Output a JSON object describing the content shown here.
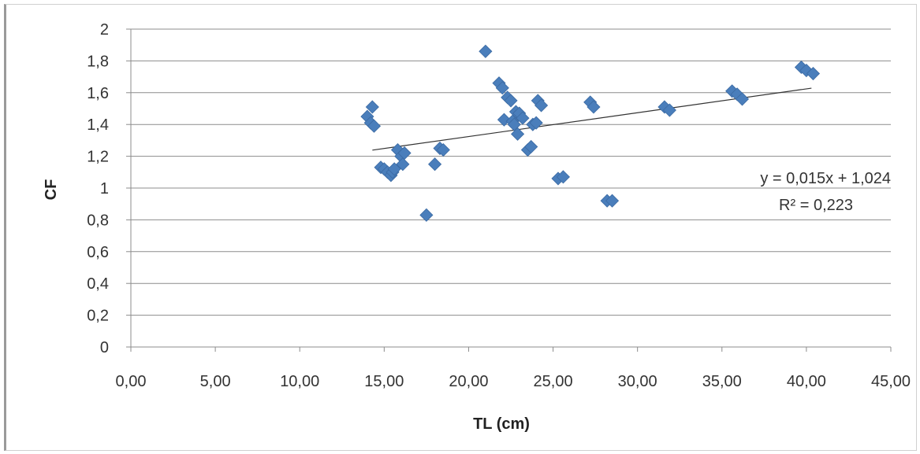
{
  "chart_data": {
    "type": "scatter",
    "xlabel": "TL (cm)",
    "ylabel": "CF",
    "xlim": [
      0,
      45
    ],
    "ylim": [
      0,
      2
    ],
    "x_ticks": [
      "0,00",
      "5,00",
      "10,00",
      "15,00",
      "20,00",
      "25,00",
      "30,00",
      "35,00",
      "40,00",
      "45,00"
    ],
    "y_ticks": [
      "0",
      "0,2",
      "0,4",
      "0,6",
      "0,8",
      "1",
      "1,2",
      "1,4",
      "1,6",
      "1,8",
      "2"
    ],
    "grid": {
      "horizontal": true,
      "vertical": false
    },
    "marker_color": "#4a7ebb",
    "trendline": {
      "slope": 0.015,
      "intercept": 1.024,
      "x_range": [
        14.3,
        40.3
      ],
      "equation": "y = 0,015x + 1,024",
      "r_squared": "R² = 0,223"
    },
    "points": [
      {
        "x": 14.3,
        "y": 1.51
      },
      {
        "x": 14.0,
        "y": 1.45
      },
      {
        "x": 14.2,
        "y": 1.41
      },
      {
        "x": 14.4,
        "y": 1.39
      },
      {
        "x": 14.8,
        "y": 1.13
      },
      {
        "x": 15.0,
        "y": 1.12
      },
      {
        "x": 15.2,
        "y": 1.1
      },
      {
        "x": 15.4,
        "y": 1.08
      },
      {
        "x": 15.5,
        "y": 1.1
      },
      {
        "x": 15.6,
        "y": 1.12
      },
      {
        "x": 15.8,
        "y": 1.24
      },
      {
        "x": 16.0,
        "y": 1.2
      },
      {
        "x": 16.2,
        "y": 1.22
      },
      {
        "x": 16.1,
        "y": 1.15
      },
      {
        "x": 17.5,
        "y": 0.83
      },
      {
        "x": 18.0,
        "y": 1.15
      },
      {
        "x": 18.3,
        "y": 1.25
      },
      {
        "x": 18.5,
        "y": 1.24
      },
      {
        "x": 21.0,
        "y": 1.86
      },
      {
        "x": 21.8,
        "y": 1.66
      },
      {
        "x": 22.0,
        "y": 1.63
      },
      {
        "x": 22.1,
        "y": 1.43
      },
      {
        "x": 22.3,
        "y": 1.57
      },
      {
        "x": 22.5,
        "y": 1.55
      },
      {
        "x": 22.6,
        "y": 1.42
      },
      {
        "x": 22.8,
        "y": 1.48
      },
      {
        "x": 22.7,
        "y": 1.4
      },
      {
        "x": 23.0,
        "y": 1.47
      },
      {
        "x": 22.9,
        "y": 1.34
      },
      {
        "x": 23.2,
        "y": 1.44
      },
      {
        "x": 23.5,
        "y": 1.24
      },
      {
        "x": 23.7,
        "y": 1.26
      },
      {
        "x": 23.8,
        "y": 1.4
      },
      {
        "x": 24.0,
        "y": 1.41
      },
      {
        "x": 24.1,
        "y": 1.55
      },
      {
        "x": 24.3,
        "y": 1.52
      },
      {
        "x": 25.3,
        "y": 1.06
      },
      {
        "x": 25.6,
        "y": 1.07
      },
      {
        "x": 27.2,
        "y": 1.54
      },
      {
        "x": 27.4,
        "y": 1.51
      },
      {
        "x": 28.2,
        "y": 0.92
      },
      {
        "x": 28.5,
        "y": 0.92
      },
      {
        "x": 31.6,
        "y": 1.51
      },
      {
        "x": 31.9,
        "y": 1.49
      },
      {
        "x": 35.6,
        "y": 1.61
      },
      {
        "x": 35.9,
        "y": 1.59
      },
      {
        "x": 36.2,
        "y": 1.56
      },
      {
        "x": 39.7,
        "y": 1.76
      },
      {
        "x": 40.0,
        "y": 1.74
      },
      {
        "x": 40.4,
        "y": 1.72
      }
    ]
  }
}
